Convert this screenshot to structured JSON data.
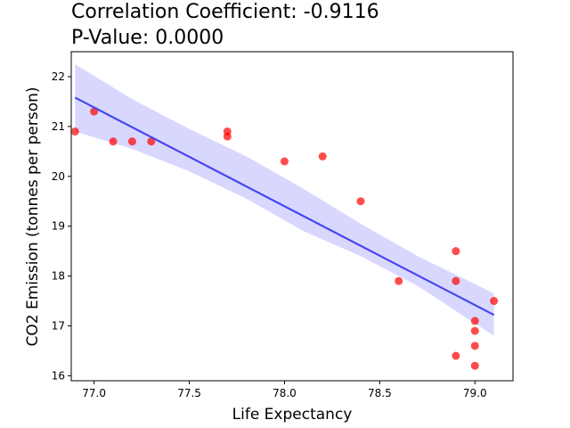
{
  "chart_data": {
    "type": "scatter",
    "title": [
      "Correlation Coefficient: -0.9116",
      "P-Value: 0.0000"
    ],
    "xlabel": "Life Expectancy",
    "ylabel": "CO2 Emission (tonnes per person)",
    "xlim": [
      76.88,
      79.2
    ],
    "ylim": [
      15.9,
      22.5
    ],
    "xticks": [
      77.0,
      77.5,
      78.0,
      78.5,
      79.0
    ],
    "xtick_labels": [
      "77.0",
      "77.5",
      "78.0",
      "78.5",
      "79.0"
    ],
    "yticks": [
      16,
      17,
      18,
      19,
      20,
      21,
      22
    ],
    "ytick_labels": [
      "16",
      "17",
      "18",
      "19",
      "20",
      "21",
      "22"
    ],
    "grid": false,
    "legend": "none",
    "points": [
      {
        "x": 76.9,
        "y": 20.9
      },
      {
        "x": 77.0,
        "y": 21.3
      },
      {
        "x": 77.1,
        "y": 20.7
      },
      {
        "x": 77.2,
        "y": 20.7
      },
      {
        "x": 77.3,
        "y": 20.7
      },
      {
        "x": 77.7,
        "y": 20.9
      },
      {
        "x": 77.7,
        "y": 20.8
      },
      {
        "x": 78.0,
        "y": 20.3
      },
      {
        "x": 78.2,
        "y": 20.4
      },
      {
        "x": 78.4,
        "y": 19.5
      },
      {
        "x": 78.6,
        "y": 17.9
      },
      {
        "x": 78.9,
        "y": 18.5
      },
      {
        "x": 78.9,
        "y": 17.9
      },
      {
        "x": 78.9,
        "y": 16.4
      },
      {
        "x": 79.0,
        "y": 17.1
      },
      {
        "x": 79.0,
        "y": 16.9
      },
      {
        "x": 79.0,
        "y": 16.6
      },
      {
        "x": 79.0,
        "y": 16.2
      },
      {
        "x": 79.1,
        "y": 17.5
      }
    ],
    "regression": {
      "x": [
        76.9,
        79.1
      ],
      "y": [
        21.58,
        17.22
      ],
      "ci_upper": [
        [
          76.9,
          22.25
        ],
        [
          77.2,
          21.55
        ],
        [
          77.5,
          20.95
        ],
        [
          77.8,
          20.4
        ],
        [
          78.1,
          19.75
        ],
        [
          78.4,
          19.05
        ],
        [
          78.7,
          18.4
        ],
        [
          79.1,
          17.65
        ]
      ],
      "ci_lower": [
        [
          76.9,
          20.9
        ],
        [
          77.2,
          20.55
        ],
        [
          77.5,
          20.1
        ],
        [
          77.8,
          19.55
        ],
        [
          78.1,
          18.9
        ],
        [
          78.4,
          18.4
        ],
        [
          78.7,
          17.8
        ],
        [
          79.1,
          16.8
        ]
      ]
    },
    "colors": {
      "points": "#ff0000",
      "line": "#3f3ff0",
      "band": "#d8d8ff"
    }
  }
}
